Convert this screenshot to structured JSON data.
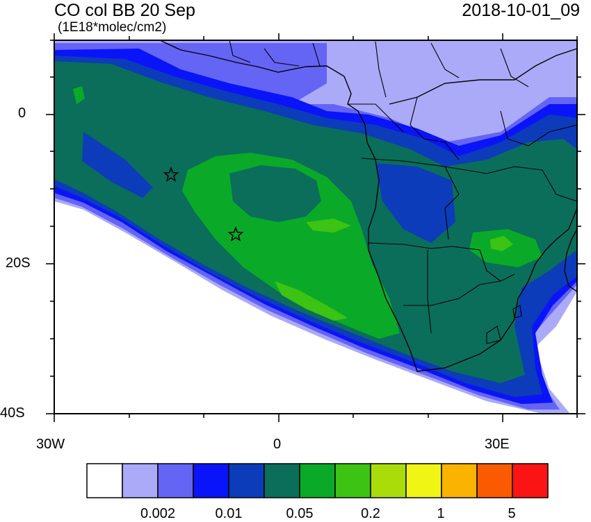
{
  "title": "CO col BB 20 Sep",
  "units": "(1E18*molec/cm2)",
  "timestamp": "2018-10-01_09",
  "axes": {
    "lat_labels": [
      "0",
      "20S",
      "40S"
    ],
    "lon_labels": [
      "30W",
      "0",
      "30E"
    ],
    "lon_range_deg": [
      -30,
      40
    ],
    "lat_range_deg": [
      -40,
      10
    ]
  },
  "colorbar": {
    "colors": [
      "#ffffff",
      "#aaaaf8",
      "#6464f5",
      "#0a14f8",
      "#0c3cb9",
      "#0a6e5a",
      "#0aaa28",
      "#3cc314",
      "#aadc0a",
      "#f0f514",
      "#fab400",
      "#fa5a00",
      "#fa1414"
    ],
    "labels": [
      "0.002",
      "0.01",
      "0.05",
      "0.2",
      "1",
      "5"
    ]
  },
  "markers": [
    {
      "name": "star-marker-1",
      "lon": -14.5,
      "lat": -8.0
    },
    {
      "name": "star-marker-2",
      "lon": -5.5,
      "lat": -16.0
    }
  ]
}
